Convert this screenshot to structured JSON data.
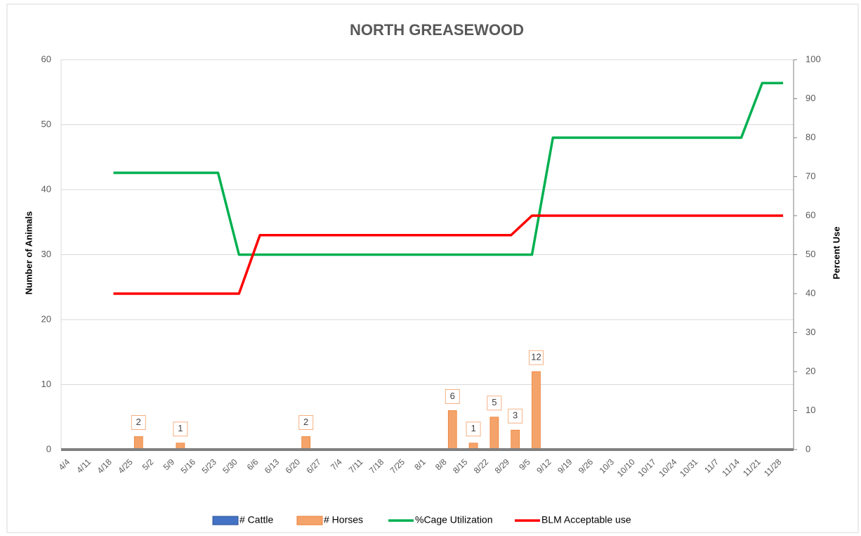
{
  "chart_data": {
    "type": "combo",
    "title": "NORTH GREASEWOOD",
    "ylabel": "Number of Animals",
    "y2label": "Percent Use",
    "categories": [
      "4/4",
      "4/11",
      "4/18",
      "4/25",
      "5/2",
      "5/9",
      "5/16",
      "5/23",
      "5/30",
      "6/6",
      "6/13",
      "6/20",
      "6/27",
      "7/4",
      "7/11",
      "7/18",
      "7/25",
      "8/1",
      "8/8",
      "8/15",
      "8/22",
      "8/29",
      "9/5",
      "9/12",
      "9/19",
      "9/26",
      "10/3",
      "10/10",
      "10/17",
      "10/24",
      "10/31",
      "11/7",
      "11/14",
      "11/21",
      "11/28"
    ],
    "ylim": [
      0,
      60
    ],
    "yticks": [
      0,
      10,
      20,
      30,
      40,
      50,
      60
    ],
    "y2lim": [
      0,
      100
    ],
    "y2ticks": [
      0,
      10,
      20,
      30,
      40,
      50,
      60,
      70,
      80,
      90,
      100
    ],
    "grid": true,
    "legend": "bottom",
    "series": [
      {
        "name": "# Cattle",
        "kind": "bar",
        "color": "#4472c4",
        "values": [
          0,
          0,
          0,
          0,
          0,
          0,
          0,
          0,
          0,
          0,
          0,
          0,
          0,
          0,
          0,
          0,
          0,
          0,
          0,
          0,
          0,
          0,
          0,
          0,
          0,
          0,
          0,
          0,
          0,
          0,
          0,
          0,
          0,
          0,
          0
        ]
      },
      {
        "name": "# Horses",
        "kind": "bar",
        "color": "#f4a46a",
        "values": [
          null,
          null,
          null,
          2,
          null,
          1,
          null,
          null,
          null,
          null,
          null,
          2,
          null,
          null,
          null,
          null,
          null,
          null,
          6,
          1,
          5,
          3,
          12,
          null,
          null,
          null,
          null,
          null,
          null,
          null,
          null,
          null,
          null,
          null,
          null
        ]
      },
      {
        "name": "%Cage Utilization",
        "kind": "line",
        "axis": "y2",
        "color": "#00b050",
        "values": [
          null,
          null,
          71,
          71,
          71,
          71,
          71,
          71,
          50,
          50,
          50,
          50,
          50,
          50,
          50,
          50,
          50,
          50,
          50,
          50,
          50,
          50,
          50,
          80,
          80,
          80,
          80,
          80,
          80,
          80,
          80,
          80,
          80,
          94,
          94
        ]
      },
      {
        "name": "BLM Acceptable use",
        "kind": "line",
        "axis": "y2",
        "color": "#ff0000",
        "values": [
          null,
          null,
          40,
          40,
          40,
          40,
          40,
          40,
          40,
          55,
          55,
          55,
          55,
          55,
          55,
          55,
          55,
          55,
          55,
          55,
          55,
          55,
          60,
          60,
          60,
          60,
          60,
          60,
          60,
          60,
          60,
          60,
          60,
          60,
          60
        ]
      }
    ]
  }
}
